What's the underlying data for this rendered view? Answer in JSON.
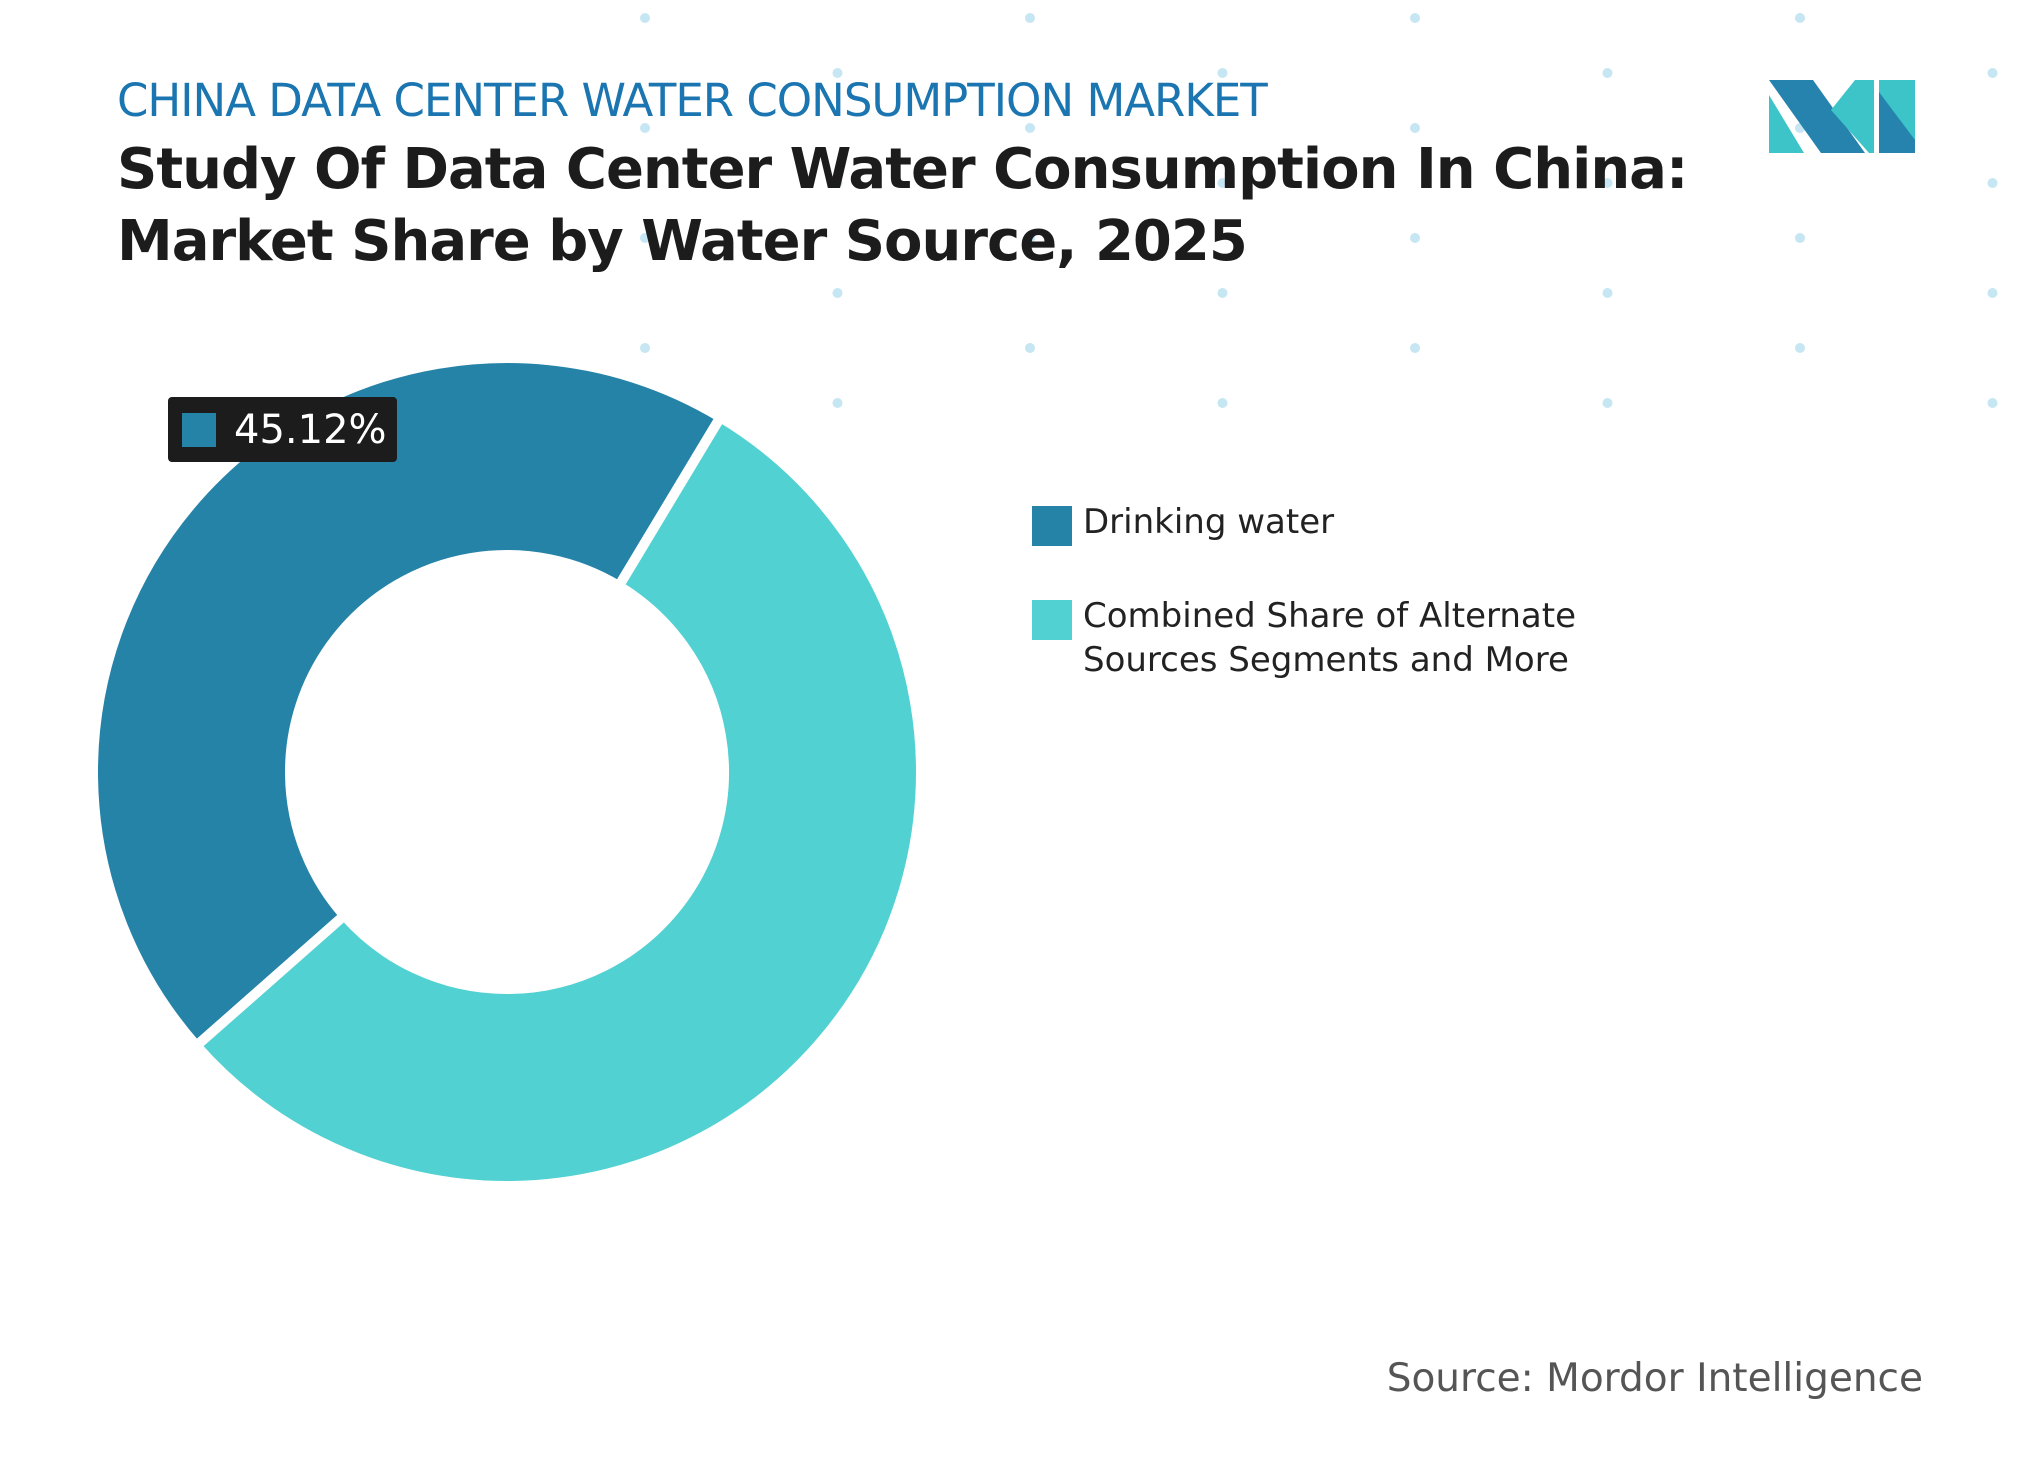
{
  "header": {
    "subtitle": "CHINA DATA CENTER WATER CONSUMPTION MARKET",
    "title_line1": "Study Of Data Center Water Consumption In China:",
    "title_line2": "Market Share by Water Source, 2025"
  },
  "logo": {
    "name": "Mordor Intelligence logo",
    "colors": [
      "#2683ae",
      "#3cc4c8"
    ]
  },
  "chart_data": {
    "type": "pie",
    "donut": true,
    "title": "Study Of Data Center Water Consumption In China: Market Share by Water Source, 2025",
    "series": [
      {
        "name": "Drinking water",
        "value": 45.12,
        "color": "#2683a8"
      },
      {
        "name": "Combined Share of Alternate Sources Segments and More",
        "value": 54.88,
        "color": "#52d1d3"
      }
    ],
    "data_labels": [
      {
        "series": "Drinking water",
        "text": "45.12%"
      }
    ],
    "legend_placement": "right"
  },
  "source": "Source: Mordor Intelligence"
}
